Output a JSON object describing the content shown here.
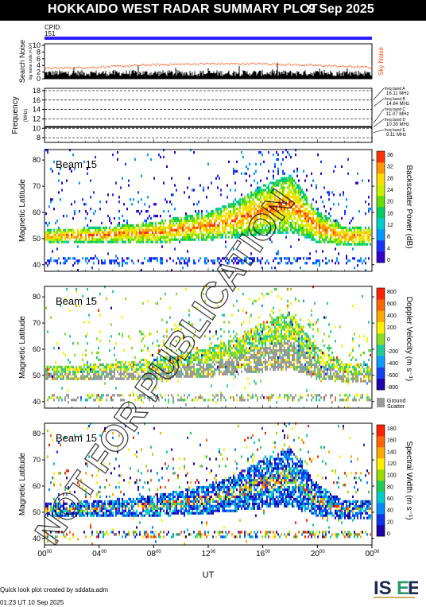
{
  "header": {
    "title": "HOKKAIDO WEST RADAR SUMMARY PLOT",
    "date": "9 Sep 2025"
  },
  "cpid": {
    "label": "CPID:",
    "value": "151"
  },
  "noise_panel": {
    "ylabel_main": "Search Noise",
    "ylabel_sub": "log noise units (×10³)",
    "right_label": "Sky Noise",
    "yticks": [
      "10",
      "8",
      "6",
      "4",
      "2",
      "0"
    ],
    "colors": {
      "sky": "#ff4400",
      "search": "#000000"
    }
  },
  "freq_panel": {
    "ylabel_main": "Frequency",
    "ylabel_sub": "(MHz)",
    "yticks": [
      "18",
      "16",
      "14",
      "12",
      "10",
      "8"
    ],
    "bands": [
      {
        "label": "freq band A",
        "value": "16.11 MHz"
      },
      {
        "label": "freq band B",
        "value": "14.64 MHz"
      },
      {
        "label": "freq band C",
        "value": "11.07 MHz"
      },
      {
        "label": "freq band D",
        "value": "10.30 MHz"
      },
      {
        "label": "freq band E",
        "value": "9.11 MHz"
      }
    ]
  },
  "panels": [
    {
      "beam": "Beam 15",
      "ylabel": "Magnetic Latitude",
      "yticks": [
        "80",
        "70",
        "60",
        "50",
        "40"
      ],
      "colorbar_label": "Backscatter Power (dB)",
      "colorbar_ticks": [
        "36",
        "32",
        "28",
        "24",
        "20",
        "16",
        "12",
        "8",
        "4",
        "0"
      ]
    },
    {
      "beam": "Beam 15",
      "ylabel": "Magnetic Latitude",
      "yticks": [
        "80",
        "70",
        "60",
        "50",
        "40"
      ],
      "colorbar_label": "Doppler Velocity (m s⁻¹)",
      "colorbar_ticks": [
        "800",
        "600",
        "400",
        "200",
        "0",
        "-200",
        "-400",
        "-600",
        "-800"
      ],
      "ground_scatter_label_1": "Ground",
      "ground_scatter_label_2": "Scatter"
    },
    {
      "beam": "Beam 15",
      "ylabel": "Magnetic Latitude",
      "yticks": [
        "80",
        "70",
        "60",
        "50",
        "40"
      ],
      "colorbar_label": "Spectral Width (m s⁻¹)",
      "colorbar_ticks": [
        "180",
        "160",
        "140",
        "120",
        "100",
        "80",
        "60",
        "40",
        "20",
        "0"
      ]
    }
  ],
  "xaxis": {
    "label": "UT",
    "ticks": [
      "00",
      "04",
      "08",
      "12",
      "16",
      "20",
      "00"
    ],
    "tick_sup": "00"
  },
  "watermark": "NOT FOR PUBLICATION",
  "footer": {
    "quicklook": "Quick look plot created by sddata.adm",
    "timestamp": "01:23 UT 10 Sep 2025"
  },
  "logo_text": "ISEE",
  "chart_data": [
    {
      "type": "line",
      "title": "",
      "xlabel": "UT",
      "ylabel": "Search Noise",
      "xlim": [
        0,
        24
      ],
      "ylim": [
        0,
        10
      ],
      "series": [
        {
          "name": "Sky Noise",
          "x": [
            0,
            4,
            8,
            12,
            16,
            20,
            24
          ],
          "values": [
            3.2,
            3.6,
            4.3,
            4.6,
            4.6,
            4.1,
            3.5
          ]
        }
      ]
    },
    {
      "type": "line",
      "xlabel": "UT",
      "ylabel": "Frequency",
      "xlim": [
        0,
        24
      ],
      "ylim": [
        8,
        18
      ],
      "series": [
        {
          "x": [
            0,
            24
          ],
          "values": [
            10.3,
            10.3
          ]
        }
      ]
    },
    {
      "type": "heatmap",
      "ylabel": "Magnetic Latitude",
      "xlim": [
        0,
        24
      ],
      "ylim": [
        38,
        84
      ],
      "colorbar_range": [
        0,
        36
      ],
      "scatter_band": {
        "x": [
          0,
          4,
          8,
          12,
          14,
          16,
          18,
          20,
          22,
          24
        ],
        "lat_low": [
          48,
          48,
          48,
          49,
          50,
          51,
          52,
          48,
          47,
          47
        ],
        "lat_high": [
          53,
          54,
          56,
          60,
          64,
          70,
          74,
          60,
          54,
          54
        ]
      }
    },
    {
      "type": "heatmap",
      "ylabel": "Magnetic Latitude",
      "xlim": [
        0,
        24
      ],
      "ylim": [
        38,
        84
      ],
      "colorbar_range": [
        -800,
        800
      ]
    },
    {
      "type": "heatmap",
      "ylabel": "Magnetic Latitude",
      "xlim": [
        0,
        24
      ],
      "ylim": [
        38,
        84
      ],
      "colorbar_range": [
        0,
        180
      ]
    }
  ]
}
